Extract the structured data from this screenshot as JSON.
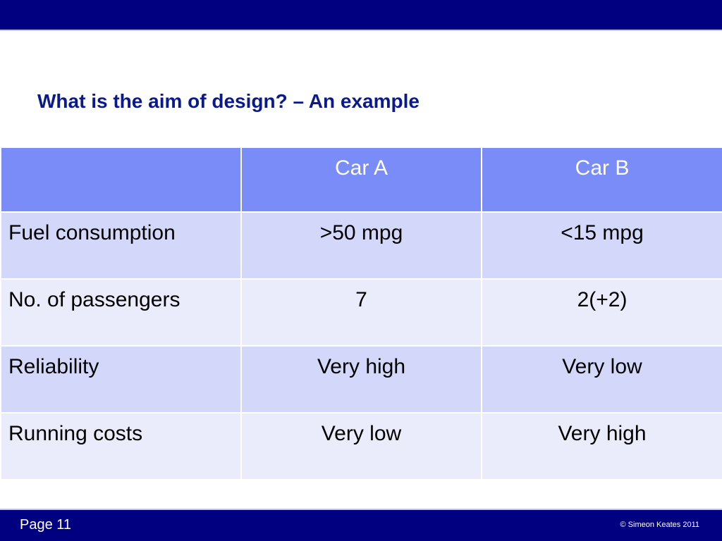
{
  "slide": {
    "title": "What is the aim of design? – An example",
    "footer": {
      "page_label": "Page 11",
      "copyright": "© Simeon Keates 2011"
    }
  },
  "table": {
    "headers": [
      "",
      "Car A",
      "Car B"
    ],
    "rows": [
      {
        "label": "Fuel consumption",
        "car_a": ">50 mpg",
        "car_b": "<15 mpg"
      },
      {
        "label": "No. of passengers",
        "car_a": "7",
        "car_b": "2(+2)"
      },
      {
        "label": "Reliability",
        "car_a": "Very high",
        "car_b": "Very low"
      },
      {
        "label": "Running costs",
        "car_a": "Very low",
        "car_b": "Very high"
      }
    ]
  },
  "colors": {
    "bar": "#000080",
    "title": "#0a1a8c",
    "header_bg": "#7a8cf7",
    "row_odd_bg": "#d3d8fa",
    "row_even_bg": "#eaecfc"
  }
}
